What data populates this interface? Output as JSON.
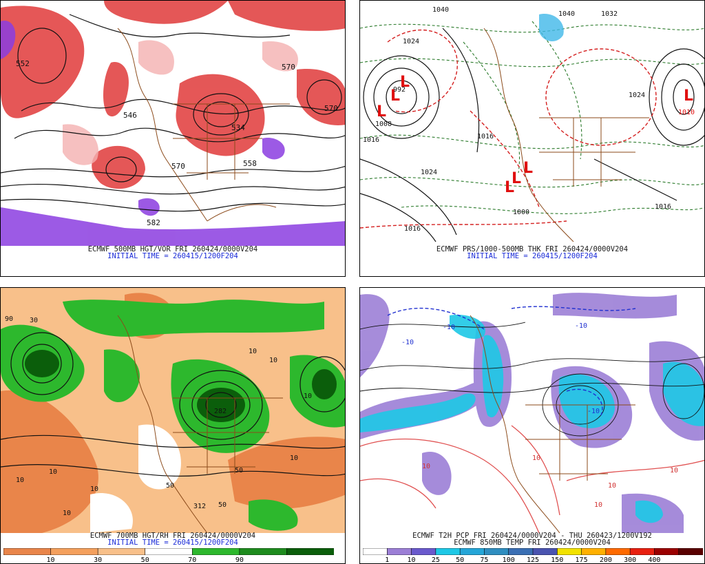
{
  "panels": [
    {
      "id": "tl",
      "title_line1": "ECMWF 500MB HGT/VOR FRI 260424/0000V204",
      "title_line2": "INITIAL TIME = 260415/1200F204",
      "contour_labels": [
        "552",
        "546",
        "534",
        "558",
        "570",
        "570",
        "582",
        "570"
      ]
    },
    {
      "id": "tr",
      "title_line1": "ECMWF PRS/1000-500MB THK FRI 260424/0000V204",
      "title_line2": "INITIAL TIME = 260415/1200F204",
      "contour_labels": [
        "1032",
        "1040",
        "1040",
        "1024",
        "1016",
        "1008",
        "1024",
        "1016",
        "1016",
        "1024",
        "1016",
        "1000",
        "992",
        "1010"
      ],
      "lows": [
        "L",
        "L",
        "L",
        "L",
        "L",
        "L",
        "L"
      ]
    },
    {
      "id": "bl",
      "title_line1": "ECMWF 700MB HGT/RH FRI 260424/0000V204",
      "title_line2": "INITIAL TIME = 260415/1200F204",
      "contour_labels": [
        "90",
        "10",
        "10",
        "10",
        "10",
        "10",
        "50",
        "50",
        "50",
        "10",
        "10",
        "282",
        "30",
        "312",
        "10"
      ],
      "colorbar": {
        "colors": [
          "#e9854a",
          "#f4a05d",
          "#f8c08a",
          "#ffffff",
          "#2db82d",
          "#1e8c1e",
          "#0b5e0b"
        ],
        "labels": [
          "10",
          "30",
          "50",
          "70",
          "90"
        ]
      }
    },
    {
      "id": "br",
      "title_line1": "ECMWF T2H PCP FRI 260424/0000V204 - THU 260423/1200V192",
      "title_line2": "ECMWF 850MB TEMP FRI 260424/0000V204",
      "contour_labels": [
        "-10",
        "-10",
        "-10",
        "-10",
        "10",
        "10",
        "10",
        "10",
        "10"
      ],
      "colorbar": {
        "colors": [
          "#ffffff",
          "#9c7fd6",
          "#6a5acd",
          "#1ec8e6",
          "#25a6d8",
          "#2f8ec0",
          "#3a6fb4",
          "#4a54b0",
          "#f2e200",
          "#ffb000",
          "#ff6a00",
          "#e82010",
          "#9b0000",
          "#5a0000"
        ],
        "labels": [
          "1",
          "10",
          "25",
          "50",
          "75",
          "100",
          "125",
          "150",
          "175",
          "200",
          "300",
          "400"
        ]
      }
    }
  ]
}
